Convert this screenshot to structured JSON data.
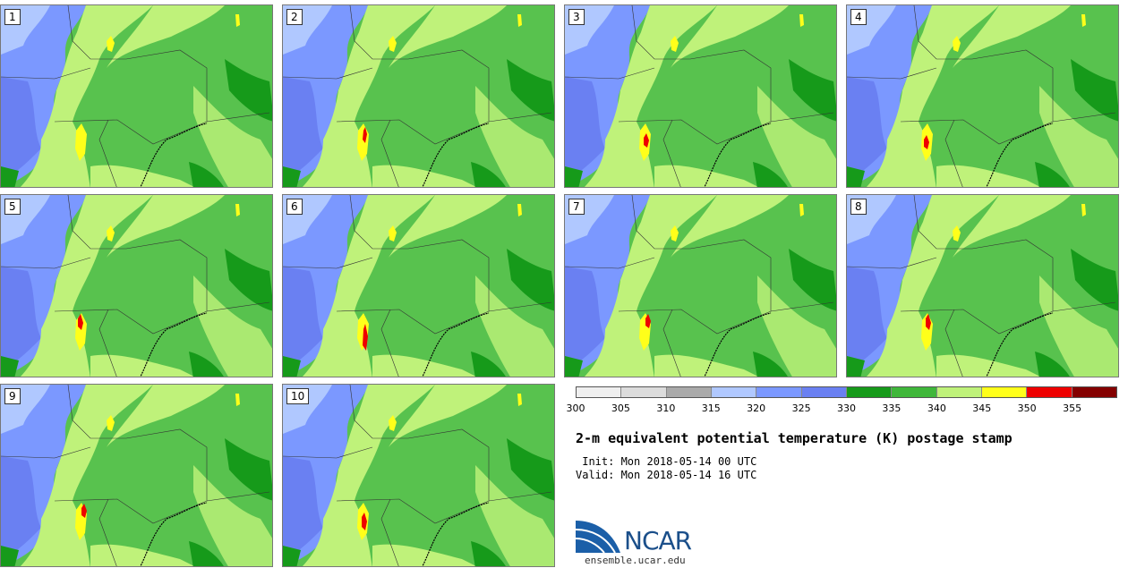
{
  "panels": [
    {
      "label": "1"
    },
    {
      "label": "2"
    },
    {
      "label": "3"
    },
    {
      "label": "4"
    },
    {
      "label": "5"
    },
    {
      "label": "6"
    },
    {
      "label": "7"
    },
    {
      "label": "8"
    },
    {
      "label": "9"
    },
    {
      "label": "10"
    }
  ],
  "colorbar": {
    "colors": [
      "#efefef",
      "#dcdcdc",
      "#aaaaaa",
      "#b0c8ff",
      "#7b98ff",
      "#6a80f2",
      "#169a1a",
      "#3fb73a",
      "#bff27a",
      "#ffff1a",
      "#ee0000",
      "#840000"
    ],
    "ticks": [
      "300",
      "305",
      "310",
      "315",
      "320",
      "325",
      "330",
      "335",
      "340",
      "345",
      "350",
      "355"
    ]
  },
  "title": "2-m equivalent potential temperature (K) postage stamp",
  "init": " Init: Mon 2018-05-14 00 UTC",
  "valid": "Valid: Mon 2018-05-14 16 UTC",
  "logo": {
    "name": "NCAR",
    "url": "ensemble.ucar.edu"
  },
  "map_colors": {
    "cool_light": "#b0c8ff",
    "cool": "#7b98ff",
    "cool_dark": "#6a80f2",
    "green_dark": "#169a1a",
    "green": "#3fb73a",
    "green_light": "#bff27a",
    "yellow": "#ffff1a",
    "red": "#ee0000"
  }
}
